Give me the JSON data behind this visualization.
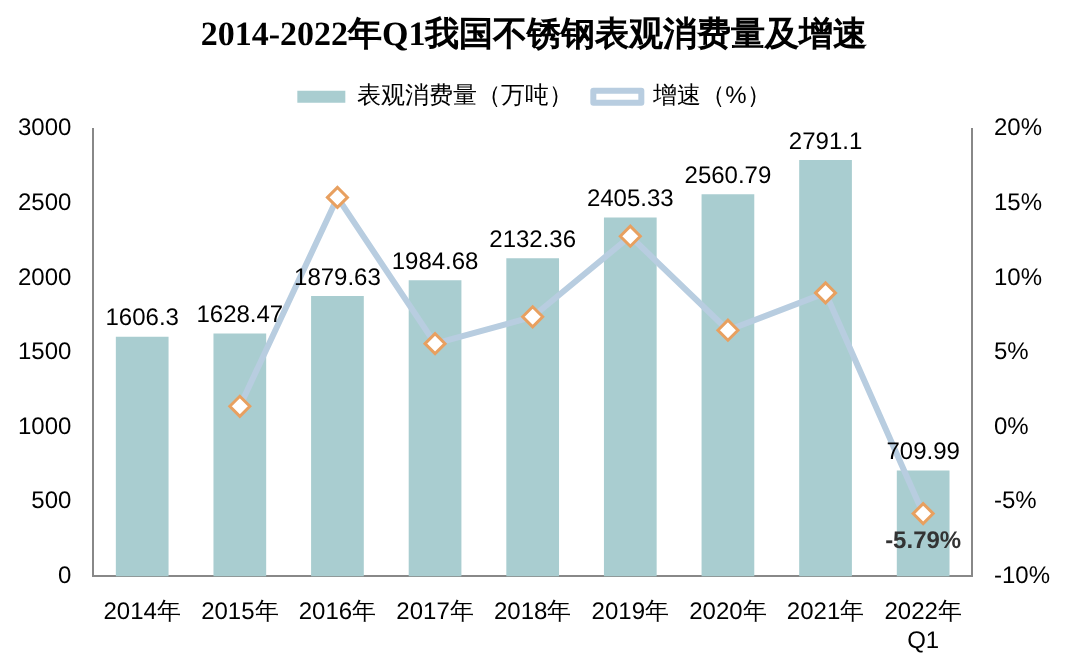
{
  "chart_data": {
    "type": "bar",
    "title": "2014-2022年Q1我国不锈钢表观消费量及增速",
    "categories": [
      "2014年",
      "2015年",
      "2016年",
      "2017年",
      "2018年",
      "2019年",
      "2020年",
      "2021年",
      "2022年\nQ1"
    ],
    "series": [
      {
        "name": "表观消费量（万吨）",
        "color": "#a9cdd0",
        "values": [
          1606.3,
          1628.47,
          1879.63,
          1984.68,
          2132.36,
          2405.33,
          2560.79,
          2791.1,
          709.99
        ],
        "value_labels": [
          "1606.3",
          "1628.47",
          "1879.63",
          "1984.68",
          "2132.36",
          "2405.33",
          "2560.79",
          "2791.1",
          "709.99"
        ]
      },
      {
        "name": "增速（%）",
        "type": "line",
        "axis": "y2",
        "color": "#b8cde0",
        "marker": "diamond",
        "values": [
          null,
          1.4,
          15.4,
          5.6,
          7.4,
          12.8,
          6.5,
          9,
          -5.79
        ],
        "value_labels": [
          null,
          null,
          null,
          null,
          null,
          null,
          null,
          null,
          "-5.79%"
        ]
      }
    ],
    "ylim": [
      0,
      3000
    ],
    "yticks": [
      0,
      500,
      1000,
      1500,
      2000,
      2500,
      3000
    ],
    "y2lim": [
      -10,
      20
    ],
    "y2ticks": [
      {
        "value": -10,
        "label": "-10%"
      },
      {
        "value": -5,
        "label": "-5%"
      },
      {
        "value": 0,
        "label": "0%"
      },
      {
        "value": 5,
        "label": "5%"
      },
      {
        "value": 10,
        "label": "10%"
      },
      {
        "value": 15,
        "label": "15%"
      },
      {
        "value": 20,
        "label": "20%"
      }
    ],
    "grid": false,
    "legend": "top"
  }
}
